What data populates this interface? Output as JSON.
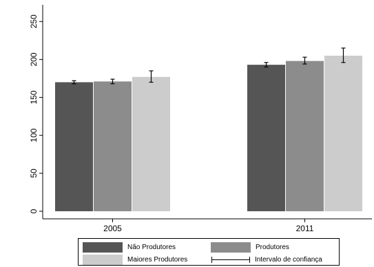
{
  "chart_data": {
    "type": "bar",
    "categories": [
      "2005",
      "2011"
    ],
    "series": [
      {
        "name": "Não Produtores",
        "color": "#555555",
        "values": [
          170,
          193
        ],
        "ci": [
          [
            168,
            172
          ],
          [
            190,
            196
          ]
        ]
      },
      {
        "name": "Produtores",
        "color": "#8c8c8c",
        "values": [
          171,
          198
        ],
        "ci": [
          [
            168,
            174
          ],
          [
            194,
            203
          ]
        ]
      },
      {
        "name": "Maiores Produtores",
        "color": "#cccccc",
        "values": [
          177,
          205
        ],
        "ci": [
          [
            170,
            185
          ],
          [
            196,
            215
          ]
        ]
      }
    ],
    "ylim": [
      -10,
      272
    ],
    "yticks": [
      "0",
      "50",
      "100",
      "150",
      "200",
      "250"
    ],
    "grid": false,
    "legend": {
      "placement": "bottom",
      "ci_label": "Intervalo de confiança"
    }
  }
}
